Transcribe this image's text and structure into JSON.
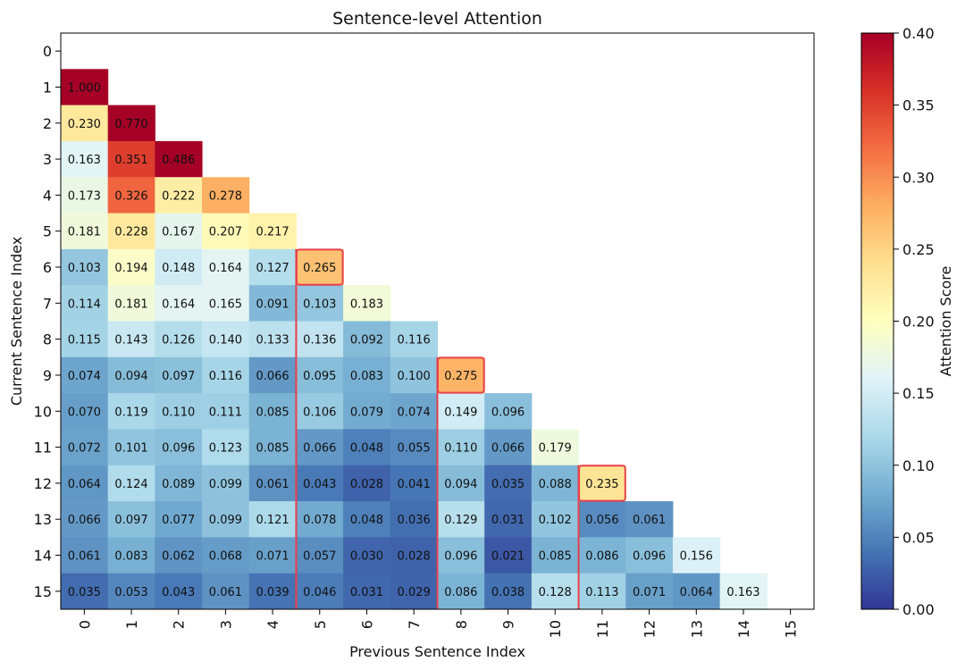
{
  "chart_data": {
    "type": "heatmap",
    "title": "Sentence-level Attention",
    "xlabel": "Previous Sentence Index",
    "ylabel": "Current Sentence Index",
    "x_ticks": [
      "0",
      "1",
      "2",
      "3",
      "4",
      "5",
      "6",
      "7",
      "8",
      "9",
      "10",
      "11",
      "12",
      "13",
      "14",
      "15"
    ],
    "y_ticks": [
      "0",
      "1",
      "2",
      "3",
      "4",
      "5",
      "6",
      "7",
      "8",
      "9",
      "10",
      "11",
      "12",
      "13",
      "14",
      "15"
    ],
    "colorbar": {
      "label": "Attention Score",
      "range": [
        0.0,
        0.4
      ],
      "ticks": [
        "0.00",
        "0.05",
        "0.10",
        "0.15",
        "0.20",
        "0.25",
        "0.30",
        "0.35",
        "0.40"
      ],
      "colormap": "RdYlBu_r"
    },
    "values": [
      [],
      [
        "1.000"
      ],
      [
        "0.230",
        "0.770"
      ],
      [
        "0.163",
        "0.351",
        "0.486"
      ],
      [
        "0.173",
        "0.326",
        "0.222",
        "0.278"
      ],
      [
        "0.181",
        "0.228",
        "0.167",
        "0.207",
        "0.217"
      ],
      [
        "0.103",
        "0.194",
        "0.148",
        "0.164",
        "0.127",
        "0.265"
      ],
      [
        "0.114",
        "0.181",
        "0.164",
        "0.165",
        "0.091",
        "0.103",
        "0.183"
      ],
      [
        "0.115",
        "0.143",
        "0.126",
        "0.140",
        "0.133",
        "0.136",
        "0.092",
        "0.116"
      ],
      [
        "0.074",
        "0.094",
        "0.097",
        "0.116",
        "0.066",
        "0.095",
        "0.083",
        "0.100",
        "0.275"
      ],
      [
        "0.070",
        "0.119",
        "0.110",
        "0.111",
        "0.085",
        "0.106",
        "0.079",
        "0.074",
        "0.149",
        "0.096"
      ],
      [
        "0.072",
        "0.101",
        "0.096",
        "0.123",
        "0.085",
        "0.066",
        "0.048",
        "0.055",
        "0.110",
        "0.066",
        "0.179"
      ],
      [
        "0.064",
        "0.124",
        "0.089",
        "0.099",
        "0.061",
        "0.043",
        "0.028",
        "0.041",
        "0.094",
        "0.035",
        "0.088",
        "0.235"
      ],
      [
        "0.066",
        "0.097",
        "0.077",
        "0.099",
        "0.121",
        "0.078",
        "0.048",
        "0.036",
        "0.129",
        "0.031",
        "0.102",
        "0.056",
        "0.061"
      ],
      [
        "0.061",
        "0.083",
        "0.062",
        "0.068",
        "0.071",
        "0.057",
        "0.030",
        "0.028",
        "0.096",
        "0.021",
        "0.085",
        "0.086",
        "0.096",
        "0.156"
      ],
      [
        "0.035",
        "0.053",
        "0.043",
        "0.061",
        "0.039",
        "0.046",
        "0.031",
        "0.029",
        "0.086",
        "0.038",
        "0.128",
        "0.113",
        "0.071",
        "0.064",
        "0.163"
      ]
    ],
    "highlighted_cells": [
      [
        6,
        5
      ],
      [
        9,
        8
      ],
      [
        12,
        11
      ]
    ],
    "highlighted_columns": [
      {
        "col": 5,
        "from_row": 6,
        "to_row": 15
      },
      {
        "col": 8,
        "from_row": 9,
        "to_row": 15
      },
      {
        "col": 11,
        "from_row": 12,
        "to_row": 15
      }
    ],
    "highlight_color": "#e8404a"
  }
}
